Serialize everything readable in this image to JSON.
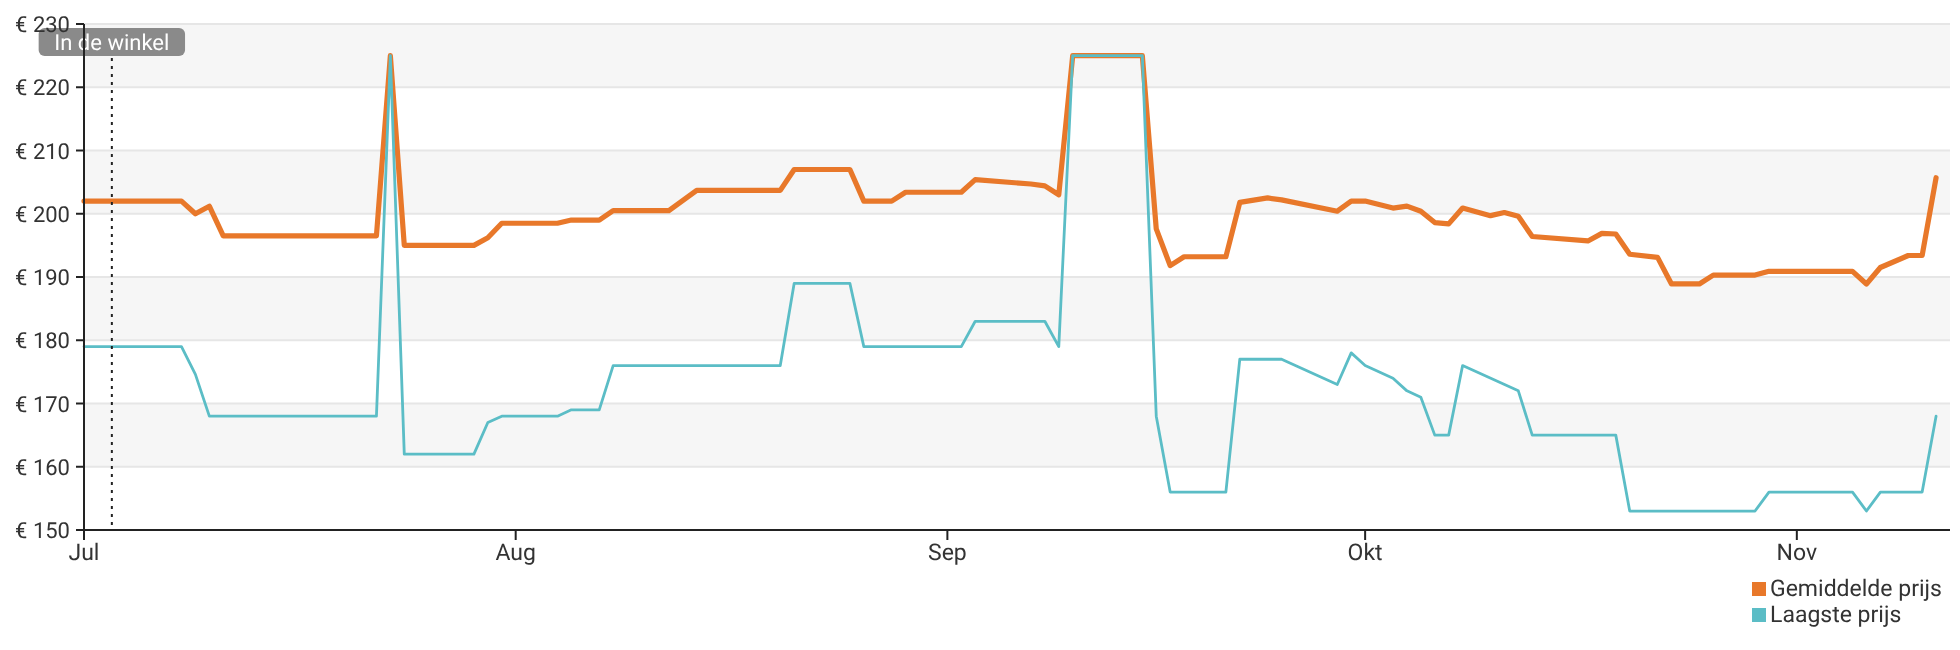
{
  "chart_data": {
    "type": "line",
    "xlim": [
      "--07-01",
      "--11-12"
    ],
    "xticks": [
      {
        "value": "--07-01",
        "label": "Jul"
      },
      {
        "value": "--08-01",
        "label": "Aug"
      },
      {
        "value": "--09-01",
        "label": "Sep"
      },
      {
        "value": "--10-01",
        "label": "Okt"
      },
      {
        "value": "--11-01",
        "label": "Nov"
      }
    ],
    "ylim": [
      150,
      230
    ],
    "yticks": [
      {
        "value": 150,
        "label": "€ 150"
      },
      {
        "value": 160,
        "label": "€ 160"
      },
      {
        "value": 170,
        "label": "€ 170"
      },
      {
        "value": 180,
        "label": "€ 180"
      },
      {
        "value": 190,
        "label": "€ 190"
      },
      {
        "value": 200,
        "label": "€ 200"
      },
      {
        "value": 210,
        "label": "€ 210"
      },
      {
        "value": 220,
        "label": "€ 220"
      },
      {
        "value": 230,
        "label": "€ 230"
      }
    ],
    "grid": "y",
    "legend": "bottom right",
    "marker": "none",
    "line_style": "solid",
    "ref_lines": [
      {
        "axis": "x",
        "value": "--07-03",
        "label": "In de winkel",
        "line_style": "dotted",
        "color": "#222222"
      }
    ],
    "series": [
      {
        "name": "Gemiddelde prijs",
        "color": "#e8782a",
        "x": [
          "--07-01",
          "--07-08",
          "--07-09",
          "--07-10",
          "--07-11",
          "--07-22",
          "--07-23",
          "--07-24",
          "--07-29",
          "--07-30",
          "--07-31",
          "--08-04",
          "--08-05",
          "--08-07",
          "--08-08",
          "--08-12",
          "--08-14",
          "--08-20",
          "--08-21",
          "--08-25",
          "--08-26",
          "--08-28",
          "--08-29",
          "--09-02",
          "--09-03",
          "--09-07",
          "--09-08",
          "--09-09",
          "--09-10",
          "--09-15",
          "--09-16",
          "--09-17",
          "--09-18",
          "--09-21",
          "--09-22",
          "--09-24",
          "--09-25",
          "--09-29",
          "--09-30",
          "--10-01",
          "--10-03",
          "--10-04",
          "--10-05",
          "--10-06",
          "--10-07",
          "--10-08",
          "--10-10",
          "--10-11",
          "--10-12",
          "--10-13",
          "--10-17",
          "--10-18",
          "--10-19",
          "--10-20",
          "--10-22",
          "--10-23",
          "--10-25",
          "--10-26",
          "--10-29",
          "--10-30",
          "--11-05",
          "--11-06",
          "--11-07",
          "--11-09",
          "--11-10",
          "--11-11"
        ],
        "values": [
          202,
          202,
          200,
          201.2,
          196.5,
          196.5,
          225,
          195,
          195,
          196.2,
          198.5,
          198.5,
          199,
          199,
          200.5,
          200.5,
          203.7,
          203.7,
          207,
          207,
          202,
          202,
          203.4,
          203.4,
          205.4,
          204.7,
          204.4,
          203,
          225,
          225,
          197.6,
          191.8,
          193.2,
          193.2,
          201.8,
          202.5,
          202.2,
          200.4,
          202,
          202,
          200.9,
          201.2,
          200.4,
          198.6,
          198.4,
          200.9,
          199.7,
          200.2,
          199.6,
          196.4,
          195.7,
          196.9,
          196.8,
          193.6,
          193.1,
          188.9,
          188.9,
          190.3,
          190.3,
          190.9,
          190.9,
          188.9,
          191.5,
          193.4,
          193.4,
          205.7
        ]
      },
      {
        "name": "Laagste prijs",
        "color": "#5bbdc6",
        "x": [
          "--07-01",
          "--07-08",
          "--07-09",
          "--07-10",
          "--07-22",
          "--07-23",
          "--07-24",
          "--07-29",
          "--07-30",
          "--07-31",
          "--08-04",
          "--08-05",
          "--08-07",
          "--08-08",
          "--08-20",
          "--08-21",
          "--08-25",
          "--08-26",
          "--09-02",
          "--09-03",
          "--09-08",
          "--09-09",
          "--09-10",
          "--09-15",
          "--09-16",
          "--09-17",
          "--09-21",
          "--09-22",
          "--09-25",
          "--09-29",
          "--09-30",
          "--10-01",
          "--10-03",
          "--10-04",
          "--10-05",
          "--10-06",
          "--10-07",
          "--10-08",
          "--10-12",
          "--10-13",
          "--10-19",
          "--10-20",
          "--10-29",
          "--10-30",
          "--11-05",
          "--11-06",
          "--11-07",
          "--11-10",
          "--11-11"
        ],
        "values": [
          179,
          179,
          174.6,
          168,
          168,
          225,
          162,
          162,
          167,
          168,
          168,
          169,
          169,
          176,
          176,
          189,
          189,
          179,
          179,
          183,
          183,
          179,
          225,
          225,
          168,
          156,
          156,
          177,
          177,
          173,
          178,
          176,
          174,
          172,
          171,
          165,
          165,
          176,
          172,
          165,
          165,
          153,
          153,
          156,
          156,
          153,
          156,
          156,
          168
        ]
      }
    ]
  }
}
